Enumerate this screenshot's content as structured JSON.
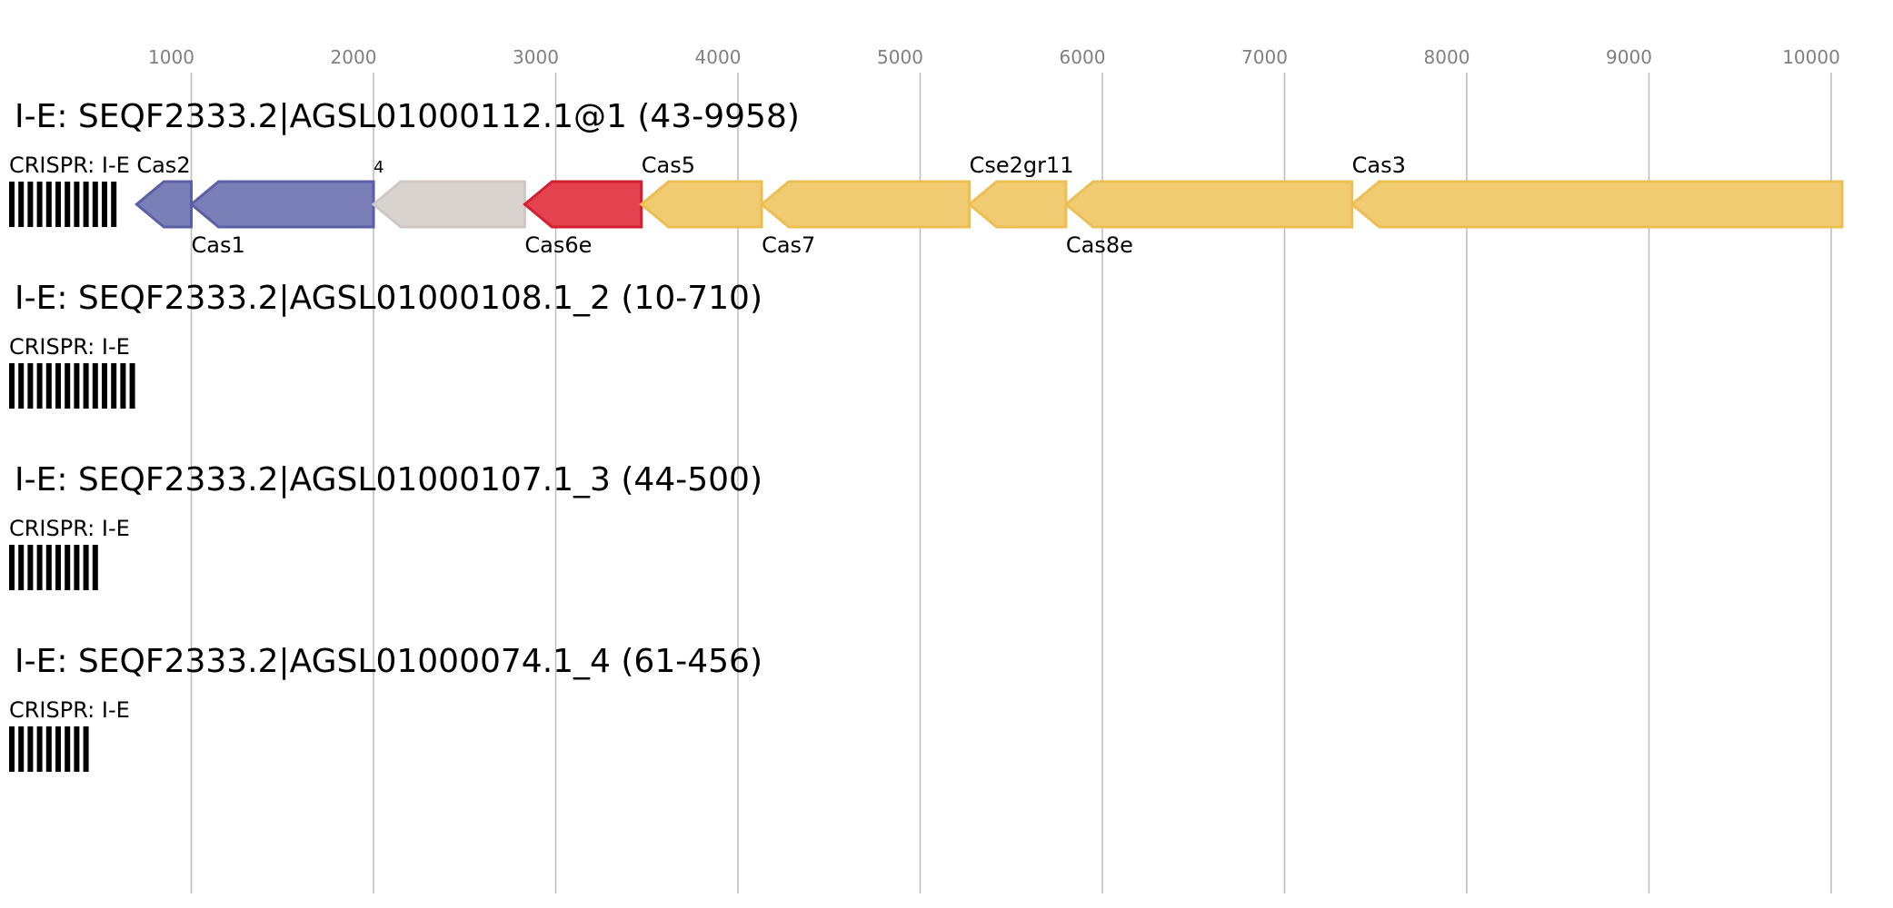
{
  "axis": {
    "ticks": [
      "1000",
      "2000",
      "3000",
      "4000",
      "5000",
      "6000",
      "7000",
      "8000",
      "9000",
      "10000"
    ],
    "tick_values": [
      1000,
      2000,
      3000,
      4000,
      5000,
      6000,
      7000,
      8000,
      9000,
      10000
    ],
    "gridline_color": "#bbbbbb",
    "tick_label_color": "#808080"
  },
  "loci": [
    {
      "title": "I-E: SEQF2333.2|AGSL01000112.1@1 (43-9958)",
      "crispr_label": "CRISPR: I-E",
      "crispr_repeats": 12,
      "genes": [
        {
          "label": "Cas2",
          "label_pos": "above",
          "start": 700,
          "end": 1000,
          "strand": "-",
          "fill": "#7b7fb8",
          "stroke": "#5a5fa6"
        },
        {
          "label": "Cas1",
          "label_pos": "below",
          "start": 1000,
          "end": 2000,
          "strand": "-",
          "fill": "#7b7fb8",
          "stroke": "#5a5fa6"
        },
        {
          "label": "4",
          "label_pos": "above-small",
          "start": 2000,
          "end": 2830,
          "strand": "-",
          "fill": "#d9d3cf",
          "stroke": "#cfc8c2"
        },
        {
          "label": "Cas6e",
          "label_pos": "below",
          "start": 2830,
          "end": 3470,
          "strand": "-",
          "fill": "#e5424f",
          "stroke": "#d31f2f"
        },
        {
          "label": "Cas5",
          "label_pos": "above",
          "start": 3470,
          "end": 4130,
          "strand": "-",
          "fill": "#f1cb72",
          "stroke": "#ecbe53"
        },
        {
          "label": "Cas7",
          "label_pos": "below",
          "start": 4130,
          "end": 5270,
          "strand": "-",
          "fill": "#f1cb72",
          "stroke": "#ecbe53"
        },
        {
          "label": "Cse2gr11",
          "label_pos": "above",
          "start": 5270,
          "end": 5800,
          "strand": "-",
          "fill": "#f1cb72",
          "stroke": "#ecbe53"
        },
        {
          "label": "Cas8e",
          "label_pos": "below",
          "start": 5800,
          "end": 7370,
          "strand": "-",
          "fill": "#f1cb72",
          "stroke": "#ecbe53"
        },
        {
          "label": "Cas3",
          "label_pos": "above",
          "start": 7370,
          "end": 10060,
          "strand": "-",
          "fill": "#f1cb72",
          "stroke": "#ecbe53"
        }
      ]
    },
    {
      "title": "I-E: SEQF2333.2|AGSL01000108.1_2 (10-710)",
      "crispr_label": "CRISPR: I-E",
      "crispr_repeats": 14,
      "genes": []
    },
    {
      "title": "I-E: SEQF2333.2|AGSL01000107.1_3 (44-500)",
      "crispr_label": "CRISPR: I-E",
      "crispr_repeats": 10,
      "genes": []
    },
    {
      "title": "I-E: SEQF2333.2|AGSL01000074.1_4 (61-456)",
      "crispr_label": "CRISPR: I-E",
      "crispr_repeats": 9,
      "genes": []
    }
  ]
}
